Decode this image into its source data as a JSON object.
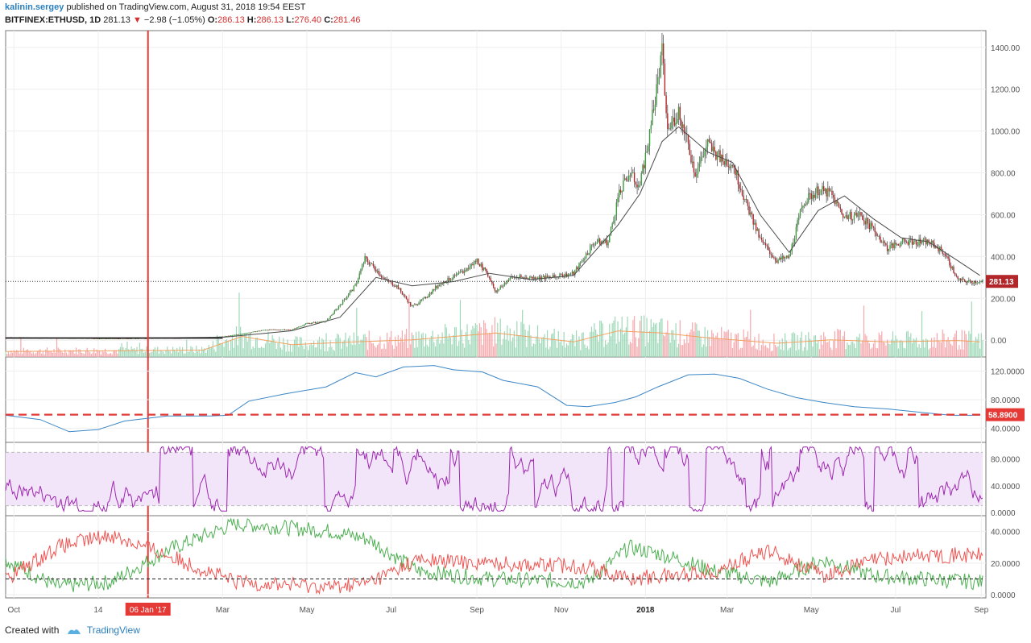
{
  "header": {
    "publisher": "kalinin.sergey",
    "published_text": "published on TradingView.com, August 31, 2018 19:54 EEST",
    "symbol": "BITFINEX:ETHUSD, 1D",
    "last": "281.13",
    "change_arrow": "▼",
    "change": "−2.98 (−1.05%)",
    "o_label": "O:",
    "o": "286.13",
    "h_label": "H:",
    "h": "286.13",
    "l_label": "L:",
    "l": "276.40",
    "c_label": "C:",
    "c": "281.46"
  },
  "footer": {
    "created_with": "Created with",
    "brand": "TradingView"
  },
  "colors": {
    "up": "#3c9a3c",
    "down": "#b2262a",
    "accent_red": "#e53935",
    "sma": "#4a4a4a",
    "vol_up": "#9fd8b8",
    "vol_down": "#f6a9ad",
    "vol_ma": "#f2a15f",
    "indicator_blue": "#3b86c6",
    "rsi": "#9c27b0",
    "rsi_band": "#f3e5f9",
    "dmi_plus": "#4caf50",
    "dmi_minus": "#ef5350",
    "grid": "#eeeeee",
    "axis_text": "#555555"
  },
  "chart_data": [
    {
      "type": "candlestick",
      "title": "BITFINEX:ETHUSD, 1D",
      "ylim": [
        -80,
        1480
      ],
      "yticks": [
        "1400.00",
        "1200.00",
        "1000.00",
        "800.00",
        "600.00",
        "400.00",
        "200.00",
        "0.00"
      ],
      "ytick_values": [
        1400,
        1200,
        1000,
        800,
        600,
        400,
        200,
        0
      ],
      "x_ticks": [
        "Oct",
        "14",
        "Mar",
        "May",
        "Jul",
        "Sep",
        "Nov",
        "2018",
        "Mar",
        "May",
        "Jul",
        "Sep"
      ],
      "x_tick_dates": [
        "2016-10-01",
        "2016-12-01",
        "2017-03-01",
        "2017-05-01",
        "2017-07-01",
        "2017-09-01",
        "2017-11-01",
        "2018-01-01",
        "2018-03-01",
        "2018-05-01",
        "2018-07-01",
        "2018-09-01"
      ],
      "x_range": [
        "2016-09-25",
        "2018-09-02"
      ],
      "close_series": {
        "dates": [
          "2016-09-25",
          "2016-10-15",
          "2016-11-15",
          "2016-12-15",
          "2017-01-06",
          "2017-01-25",
          "2017-02-15",
          "2017-03-01",
          "2017-03-15",
          "2017-04-01",
          "2017-04-20",
          "2017-05-01",
          "2017-05-15",
          "2017-05-25",
          "2017-06-05",
          "2017-06-12",
          "2017-06-20",
          "2017-06-26",
          "2017-07-05",
          "2017-07-16",
          "2017-07-25",
          "2017-08-05",
          "2017-08-15",
          "2017-08-25",
          "2017-09-01",
          "2017-09-10",
          "2017-09-15",
          "2017-09-25",
          "2017-10-10",
          "2017-10-25",
          "2017-11-10",
          "2017-11-25",
          "2017-12-05",
          "2017-12-12",
          "2017-12-20",
          "2017-12-28",
          "2018-01-05",
          "2018-01-13",
          "2018-01-17",
          "2018-01-25",
          "2018-02-06",
          "2018-02-15",
          "2018-02-25",
          "2018-03-05",
          "2018-03-15",
          "2018-03-25",
          "2018-04-06",
          "2018-04-15",
          "2018-04-25",
          "2018-05-06",
          "2018-05-15",
          "2018-05-25",
          "2018-06-05",
          "2018-06-15",
          "2018-06-25",
          "2018-07-05",
          "2018-07-15",
          "2018-07-25",
          "2018-08-05",
          "2018-08-15",
          "2018-08-22",
          "2018-08-31"
        ],
        "close": [
          13,
          12,
          10,
          8,
          10,
          11,
          12,
          17,
          30,
          50,
          50,
          80,
          90,
          170,
          260,
          390,
          340,
          290,
          260,
          160,
          200,
          270,
          300,
          340,
          385,
          300,
          230,
          300,
          300,
          300,
          320,
          470,
          470,
          680,
          800,
          740,
          1020,
          1380,
          1000,
          1100,
          800,
          940,
          860,
          850,
          650,
          480,
          380,
          400,
          660,
          720,
          700,
          590,
          600,
          530,
          440,
          470,
          470,
          470,
          420,
          290,
          280,
          281
        ]
      },
      "sma_series": {
        "dates": [
          "2016-09-25",
          "2017-01-25",
          "2017-03-01",
          "2017-04-20",
          "2017-05-25",
          "2017-06-20",
          "2017-07-16",
          "2017-08-15",
          "2017-09-10",
          "2017-10-10",
          "2017-11-10",
          "2017-12-12",
          "2017-12-28",
          "2018-01-13",
          "2018-01-25",
          "2018-02-15",
          "2018-03-05",
          "2018-03-25",
          "2018-04-15",
          "2018-05-06",
          "2018-05-25",
          "2018-06-15",
          "2018-07-05",
          "2018-07-25",
          "2018-08-15",
          "2018-08-31"
        ],
        "values": [
          12,
          12,
          14,
          45,
          110,
          300,
          260,
          280,
          320,
          290,
          310,
          550,
          700,
          950,
          1020,
          900,
          850,
          600,
          420,
          620,
          690,
          580,
          490,
          470,
          380,
          310
        ]
      },
      "volume": {
        "ylim": [
          0,
          1
        ],
        "ma_dates": [
          "2016-09-25",
          "2017-02-15",
          "2017-03-15",
          "2017-04-20",
          "2017-06-05",
          "2017-07-16",
          "2017-09-15",
          "2017-11-10",
          "2017-12-12",
          "2018-01-13",
          "2018-02-15",
          "2018-04-06",
          "2018-05-15",
          "2018-06-25",
          "2018-08-15",
          "2018-08-31"
        ],
        "ma_values": [
          0.08,
          0.1,
          0.3,
          0.18,
          0.22,
          0.25,
          0.35,
          0.22,
          0.38,
          0.35,
          0.28,
          0.2,
          0.25,
          0.22,
          0.24,
          0.22
        ]
      },
      "price_label": "281.13",
      "current_price": 281.13,
      "vertical_marker": {
        "date": "2017-01-06",
        "label": "06 Jan '17"
      }
    },
    {
      "type": "line",
      "ylim": [
        20,
        140
      ],
      "yticks": [
        "120.0000",
        "80.0000",
        "40.0000"
      ],
      "ytick_values": [
        120,
        80,
        40
      ],
      "dates": [
        "2016-09-25",
        "2016-10-20",
        "2016-11-10",
        "2016-12-01",
        "2016-12-20",
        "2017-01-20",
        "2017-02-20",
        "2017-03-05",
        "2017-03-20",
        "2017-04-15",
        "2017-05-15",
        "2017-06-05",
        "2017-06-20",
        "2017-07-10",
        "2017-08-01",
        "2017-08-15",
        "2017-09-05",
        "2017-09-20",
        "2017-10-15",
        "2017-11-05",
        "2017-11-20",
        "2017-12-10",
        "2017-12-25",
        "2018-01-10",
        "2018-02-01",
        "2018-02-20",
        "2018-03-10",
        "2018-03-30",
        "2018-04-20",
        "2018-05-10",
        "2018-06-01",
        "2018-06-25",
        "2018-07-15",
        "2018-08-10",
        "2018-08-31"
      ],
      "values": [
        58,
        52,
        35,
        38,
        50,
        57,
        57,
        58,
        78,
        88,
        98,
        118,
        112,
        126,
        128,
        122,
        119,
        107,
        98,
        72,
        70,
        76,
        84,
        98,
        115,
        116,
        110,
        95,
        83,
        76,
        70,
        67,
        63,
        58,
        58
      ],
      "threshold": 58.89,
      "price_label": "58.8900"
    },
    {
      "type": "line",
      "ylim": [
        -5,
        105
      ],
      "yticks": [
        "80.0000",
        "40.0000",
        "0.0000"
      ],
      "ytick_values": [
        80,
        40,
        0
      ],
      "band": [
        10,
        90
      ],
      "oscillator_note": "oscillating series 0–100 between dashed band lines"
    },
    {
      "type": "line",
      "ylim": [
        -2,
        50
      ],
      "yticks": [
        "40.0000",
        "20.0000",
        "0.0000"
      ],
      "ytick_values": [
        40,
        20,
        0
      ],
      "threshold": 10,
      "series": [
        {
          "dates": [
            "2016-09-25",
            "2016-11-01",
            "2016-12-10",
            "2017-01-20",
            "2017-03-10",
            "2017-05-20",
            "2017-06-15",
            "2017-07-20",
            "2017-09-10",
            "2017-11-20",
            "2017-12-20",
            "2018-01-15",
            "2018-02-20",
            "2018-04-01",
            "2018-05-10",
            "2018-06-15",
            "2018-07-20",
            "2018-08-31"
          ],
          "values": [
            22,
            5,
            8,
            28,
            45,
            40,
            35,
            15,
            10,
            8,
            30,
            25,
            15,
            8,
            22,
            12,
            10,
            8
          ]
        },
        {
          "dates": [
            "2016-09-25",
            "2016-11-01",
            "2016-12-10",
            "2017-01-20",
            "2017-03-10",
            "2017-05-20",
            "2017-06-15",
            "2017-07-20",
            "2017-09-10",
            "2017-11-20",
            "2017-12-20",
            "2018-01-15",
            "2018-02-20",
            "2018-04-01",
            "2018-05-10",
            "2018-06-15",
            "2018-07-20",
            "2018-08-31"
          ],
          "values": [
            10,
            30,
            38,
            25,
            8,
            5,
            8,
            22,
            20,
            18,
            10,
            12,
            15,
            28,
            12,
            22,
            25,
            25
          ]
        }
      ]
    }
  ]
}
